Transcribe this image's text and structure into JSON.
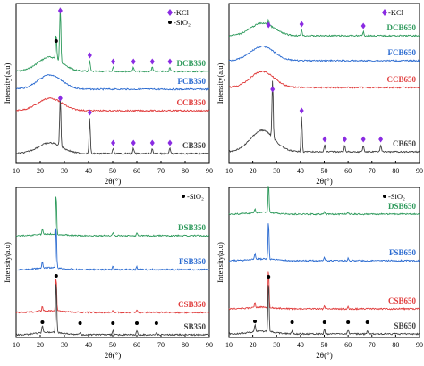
{
  "figure": "XRD patterns",
  "chart_data": [
    {
      "type": "line",
      "xlabel": "2θ(°)",
      "ylabel": "Intensity(a.u)",
      "xlim": [
        10,
        90
      ],
      "xticks": [
        10,
        20,
        30,
        40,
        50,
        60,
        70,
        80,
        90
      ],
      "legend": [
        {
          "label": "-KCl",
          "marker": "diamond",
          "color": "#8a2be2"
        },
        {
          "label": "-SiO₂",
          "marker": "circle",
          "color": "#000000"
        }
      ],
      "series": [
        {
          "name": "DCB350",
          "color": "#2e9a5c"
        },
        {
          "name": "FCB350",
          "color": "#2a6ad0"
        },
        {
          "name": "CCB350",
          "color": "#e03c3c"
        },
        {
          "name": "CB350",
          "color": "#404040"
        }
      ],
      "peaks": [
        {
          "series": "DCB350",
          "x": 28.3,
          "marker": "diamond"
        },
        {
          "series": "DCB350",
          "x": 26.6,
          "marker": "circle"
        },
        {
          "series": "DCB350",
          "x": 40.5,
          "marker": "diamond"
        },
        {
          "series": "DCB350",
          "x": 50.2,
          "marker": "diamond"
        },
        {
          "series": "DCB350",
          "x": 58.6,
          "marker": "diamond"
        },
        {
          "series": "DCB350",
          "x": 66.4,
          "marker": "diamond"
        },
        {
          "series": "DCB350",
          "x": 73.7,
          "marker": "diamond"
        },
        {
          "series": "CB350",
          "x": 28.3,
          "marker": "diamond"
        },
        {
          "series": "CB350",
          "x": 40.5,
          "marker": "diamond"
        },
        {
          "series": "CB350",
          "x": 50.2,
          "marker": "diamond"
        },
        {
          "series": "CB350",
          "x": 58.6,
          "marker": "diamond"
        },
        {
          "series": "CB350",
          "x": 66.4,
          "marker": "diamond"
        },
        {
          "series": "CB350",
          "x": 73.7,
          "marker": "diamond"
        }
      ]
    },
    {
      "type": "line",
      "xlabel": "2θ(°)",
      "ylabel": "Intensity(a.u)",
      "xlim": [
        10,
        90
      ],
      "xticks": [
        10,
        20,
        30,
        40,
        50,
        60,
        70,
        80,
        90
      ],
      "legend": [
        {
          "label": "-KCl",
          "marker": "diamond",
          "color": "#8a2be2"
        }
      ],
      "series": [
        {
          "name": "DCB650",
          "color": "#2e9a5c"
        },
        {
          "name": "FCB650",
          "color": "#2a6ad0"
        },
        {
          "name": "CCB650",
          "color": "#e03c3c"
        },
        {
          "name": "CB650",
          "color": "#404040"
        }
      ],
      "peaks": [
        {
          "series": "DCB650",
          "x": 26.6,
          "marker": "diamond"
        },
        {
          "series": "DCB650",
          "x": 40.5,
          "marker": "diamond"
        },
        {
          "series": "DCB650",
          "x": 66.4,
          "marker": "diamond"
        },
        {
          "series": "CB650",
          "x": 28.3,
          "marker": "diamond"
        },
        {
          "series": "CB650",
          "x": 40.5,
          "marker": "diamond"
        },
        {
          "series": "CB650",
          "x": 50.2,
          "marker": "diamond"
        },
        {
          "series": "CB650",
          "x": 58.6,
          "marker": "diamond"
        },
        {
          "series": "CB650",
          "x": 66.4,
          "marker": "diamond"
        },
        {
          "series": "CB650",
          "x": 73.7,
          "marker": "diamond"
        }
      ]
    },
    {
      "type": "line",
      "xlabel": "2θ(°)",
      "ylabel": "Intensity(a.u)",
      "xlim": [
        10,
        90
      ],
      "xticks": [
        10,
        20,
        30,
        40,
        50,
        60,
        70,
        80,
        90
      ],
      "legend": [
        {
          "label": "-SiO₂",
          "marker": "circle",
          "color": "#000000"
        }
      ],
      "series": [
        {
          "name": "DSB350",
          "color": "#2e9a5c"
        },
        {
          "name": "FSB350",
          "color": "#2a6ad0"
        },
        {
          "name": "CSB350",
          "color": "#e03c3c"
        },
        {
          "name": "SB350",
          "color": "#404040"
        }
      ],
      "peaks": [
        {
          "series": "SB350",
          "x": 20.9,
          "marker": "circle"
        },
        {
          "series": "SB350",
          "x": 26.6,
          "marker": "circle"
        },
        {
          "series": "SB350",
          "x": 36.5,
          "marker": "circle"
        },
        {
          "series": "SB350",
          "x": 50.1,
          "marker": "circle"
        },
        {
          "series": "SB350",
          "x": 60.0,
          "marker": "circle"
        },
        {
          "series": "SB350",
          "x": 68.1,
          "marker": "circle"
        }
      ]
    },
    {
      "type": "line",
      "xlabel": "2θ(°)",
      "ylabel": "Intensity(a.u)",
      "xlim": [
        10,
        90
      ],
      "xticks": [
        10,
        20,
        30,
        40,
        50,
        60,
        70,
        80,
        90
      ],
      "legend": [
        {
          "label": "-SiO₂",
          "marker": "circle",
          "color": "#000000"
        }
      ],
      "series": [
        {
          "name": "DSB650",
          "color": "#2e9a5c"
        },
        {
          "name": "FSB650",
          "color": "#2a6ad0"
        },
        {
          "name": "CSB650",
          "color": "#e03c3c"
        },
        {
          "name": "SB650",
          "color": "#404040"
        }
      ],
      "peaks": [
        {
          "series": "SB650",
          "x": 20.9,
          "marker": "circle"
        },
        {
          "series": "SB650",
          "x": 26.6,
          "marker": "circle"
        },
        {
          "series": "SB650",
          "x": 36.5,
          "marker": "circle"
        },
        {
          "series": "SB650",
          "x": 50.1,
          "marker": "circle"
        },
        {
          "series": "SB650",
          "x": 60.0,
          "marker": "circle"
        },
        {
          "series": "SB650",
          "x": 68.1,
          "marker": "circle"
        }
      ]
    }
  ]
}
